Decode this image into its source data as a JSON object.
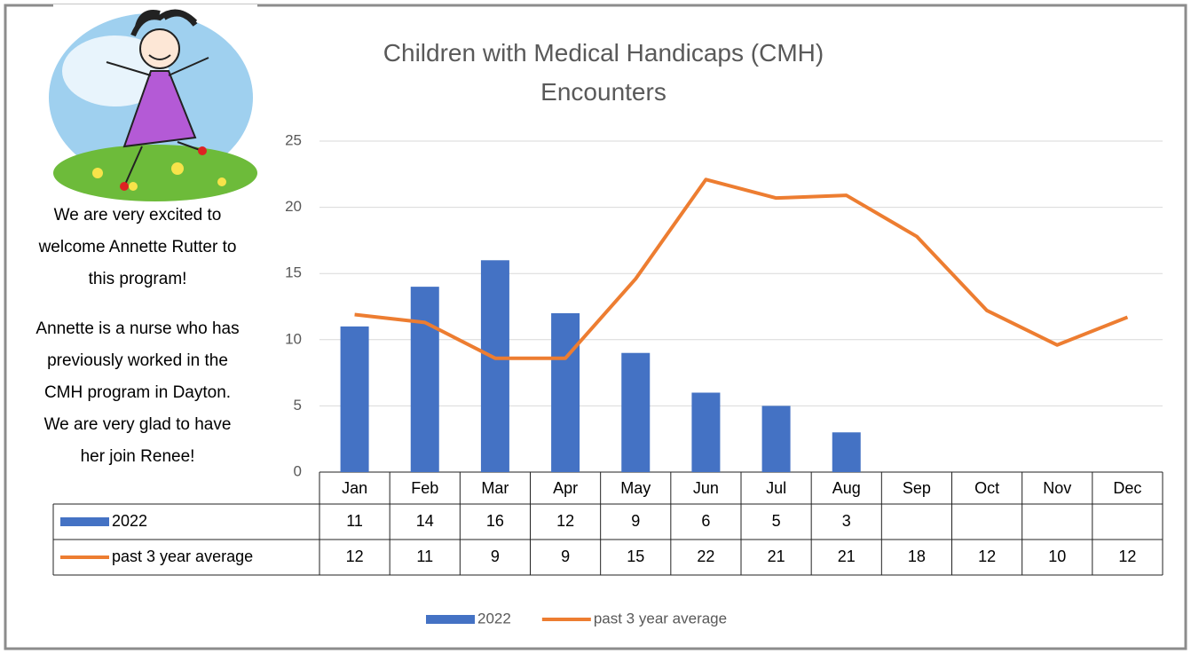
{
  "sidebar": {
    "lines": [
      "We are very excited to",
      "welcome Annette Rutter to",
      "this program!",
      "Annette is a nurse who has",
      "previously worked in the",
      "CMH program in Dayton.",
      "We are very glad to have",
      "her join Renee!"
    ]
  },
  "chart_data": {
    "type": "combo",
    "title": "Children with Medical Handicaps (CMH) Encounters",
    "categories": [
      "Jan",
      "Feb",
      "Mar",
      "Apr",
      "May",
      "Jun",
      "Jul",
      "Aug",
      "Sep",
      "Oct",
      "Nov",
      "Dec"
    ],
    "series": [
      {
        "name": "2022",
        "type": "bar",
        "color": "#4472c4",
        "values": [
          11,
          14,
          16,
          12,
          9,
          6,
          5,
          3,
          null,
          null,
          null,
          null
        ]
      },
      {
        "name": "past 3 year average",
        "type": "line",
        "color": "#ed7d31",
        "values": [
          11.9,
          11.3,
          8.6,
          8.6,
          14.6,
          22.1,
          20.7,
          20.9,
          17.8,
          12.2,
          9.6,
          11.7
        ],
        "value_labels": [
          "12",
          "11",
          "9",
          "9",
          "15",
          "22",
          "21",
          "21",
          "18",
          "12",
          "10",
          "12"
        ]
      }
    ],
    "ylim": [
      0,
      25
    ],
    "yticks": [
      0,
      5,
      10,
      15,
      20,
      25
    ],
    "grid": true,
    "legend": "bottom",
    "data_table": true
  }
}
